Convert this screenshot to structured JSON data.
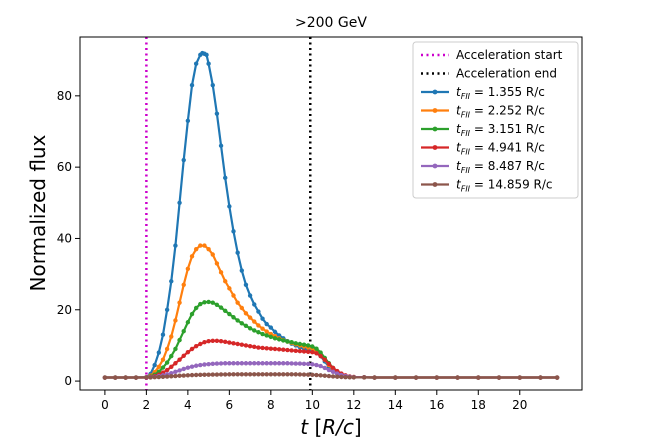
{
  "chart_data": {
    "type": "line",
    "title": ">200 GeV",
    "xlabel": "t [R/c]",
    "ylabel": "Normalized flux",
    "xlim": [
      -1.2,
      23.0
    ],
    "ylim": [
      -2.5,
      96.5
    ],
    "xticks": [
      0,
      2,
      4,
      6,
      8,
      10,
      12,
      14,
      16,
      18,
      20
    ],
    "yticks": [
      0,
      20,
      40,
      60,
      80
    ],
    "legend_position": "top-right",
    "vlines": [
      {
        "name": "Acceleration start",
        "x": 2.0,
        "color": "#cc00cc"
      },
      {
        "name": "Acceleration end",
        "x": 9.9,
        "color": "#000000"
      }
    ],
    "series": [
      {
        "prefix": "t",
        "subscript": "FII",
        "suffix": " = 1.355 R/c",
        "color": "#1f77b4",
        "x": [
          0,
          0.5,
          1,
          1.5,
          2,
          2.2,
          2.4,
          2.6,
          2.8,
          3,
          3.2,
          3.4,
          3.6,
          3.8,
          4,
          4.2,
          4.4,
          4.6,
          4.7,
          4.8,
          4.9,
          5,
          5.2,
          5.4,
          5.6,
          5.8,
          6,
          6.2,
          6.4,
          6.6,
          6.8,
          7,
          7.2,
          7.4,
          7.6,
          7.8,
          8,
          8.2,
          8.4,
          8.6,
          8.8,
          9,
          9.2,
          9.4,
          9.6,
          9.8,
          10,
          10.2,
          10.4,
          10.6,
          10.8,
          11,
          11.2,
          11.4,
          11.6,
          11.8,
          12,
          12.5,
          13,
          14,
          15,
          16,
          17,
          18,
          19,
          20,
          21,
          21.8
        ],
        "y": [
          1,
          1,
          1,
          1,
          1.1,
          2,
          4.5,
          8,
          13,
          20,
          28,
          38,
          50,
          62,
          73,
          83,
          89,
          91.5,
          92,
          91.8,
          91.5,
          89,
          83,
          75,
          66,
          57,
          49,
          42,
          36,
          31,
          27,
          24,
          21.5,
          19.5,
          17.5,
          16,
          15,
          13.8,
          12.8,
          12,
          11.2,
          10.5,
          10,
          9.5,
          9.1,
          8.8,
          8.5,
          8,
          7,
          5.5,
          4,
          2.8,
          2,
          1.6,
          1.3,
          1.15,
          1.1,
          1.05,
          1,
          1,
          1,
          1,
          1,
          1,
          1,
          1,
          1,
          1
        ]
      },
      {
        "prefix": "t",
        "subscript": "FII",
        "suffix": " = 2.252 R/c",
        "color": "#ff7f0e",
        "x": [
          0,
          0.5,
          1,
          1.5,
          2,
          2.2,
          2.4,
          2.6,
          2.8,
          3,
          3.2,
          3.4,
          3.6,
          3.8,
          4,
          4.2,
          4.4,
          4.6,
          4.8,
          5,
          5.2,
          5.4,
          5.6,
          5.8,
          6,
          6.2,
          6.4,
          6.6,
          6.8,
          7,
          7.2,
          7.4,
          7.6,
          7.8,
          8,
          8.2,
          8.4,
          8.6,
          8.8,
          9,
          9.2,
          9.4,
          9.6,
          9.8,
          10,
          10.2,
          10.4,
          10.6,
          10.8,
          11,
          11.2,
          11.4,
          11.6,
          11.8,
          12,
          12.5,
          13,
          14,
          15,
          16,
          17,
          18,
          19,
          20,
          21,
          21.8
        ],
        "y": [
          1,
          1,
          1,
          1,
          1.05,
          1.5,
          2.5,
          4,
          6,
          9,
          12.5,
          17,
          22,
          27,
          31.5,
          35,
          37,
          38,
          38,
          37,
          35.5,
          33,
          30.5,
          28,
          26,
          24,
          22,
          20.5,
          19,
          17.8,
          16.7,
          15.6,
          14.7,
          13.9,
          13.2,
          12.6,
          12,
          11.5,
          11.1,
          10.7,
          10.3,
          10,
          9.7,
          9.4,
          9.1,
          8.5,
          7.5,
          6,
          4.5,
          3.3,
          2.4,
          1.8,
          1.4,
          1.2,
          1.1,
          1.05,
          1,
          1,
          1,
          1,
          1,
          1,
          1,
          1,
          1,
          1
        ]
      },
      {
        "prefix": "t",
        "subscript": "FII",
        "suffix": " = 3.151 R/c",
        "color": "#2ca02c",
        "x": [
          0,
          0.5,
          1,
          1.5,
          2,
          2.2,
          2.4,
          2.6,
          2.8,
          3,
          3.2,
          3.4,
          3.6,
          3.8,
          4,
          4.2,
          4.4,
          4.6,
          4.8,
          5,
          5.2,
          5.4,
          5.6,
          5.8,
          6,
          6.2,
          6.4,
          6.6,
          6.8,
          7,
          7.2,
          7.4,
          7.6,
          7.8,
          8,
          8.2,
          8.4,
          8.6,
          8.8,
          9,
          9.2,
          9.4,
          9.6,
          9.8,
          10,
          10.2,
          10.4,
          10.6,
          10.8,
          11,
          11.2,
          11.4,
          11.6,
          11.8,
          12,
          12.5,
          13,
          14,
          15,
          16,
          17,
          18,
          19,
          20,
          21,
          21.8
        ],
        "y": [
          1,
          1,
          1,
          1,
          1.02,
          1.3,
          1.8,
          2.6,
          3.8,
          5.2,
          7,
          9,
          11.5,
          14,
          16.5,
          18.8,
          20.5,
          21.6,
          22.1,
          22.2,
          22,
          21.4,
          20.6,
          19.7,
          18.8,
          17.9,
          17,
          16.2,
          15.5,
          14.8,
          14.2,
          13.7,
          13.2,
          12.8,
          12.4,
          12,
          11.7,
          11.4,
          11.1,
          10.9,
          10.6,
          10.4,
          10.2,
          10,
          9.7,
          9.1,
          8,
          6.5,
          5,
          3.7,
          2.7,
          2,
          1.5,
          1.25,
          1.1,
          1.05,
          1,
          1,
          1,
          1,
          1,
          1,
          1,
          1,
          1,
          1
        ]
      },
      {
        "prefix": "t",
        "subscript": "FII",
        "suffix": " = 4.941 R/c",
        "color": "#d62728",
        "x": [
          0,
          0.5,
          1,
          1.5,
          2,
          2.2,
          2.4,
          2.6,
          2.8,
          3,
          3.2,
          3.4,
          3.6,
          3.8,
          4,
          4.2,
          4.4,
          4.6,
          4.8,
          5,
          5.2,
          5.4,
          5.6,
          5.8,
          6,
          6.2,
          6.4,
          6.6,
          6.8,
          7,
          7.2,
          7.4,
          7.6,
          7.8,
          8,
          8.2,
          8.4,
          8.6,
          8.8,
          9,
          9.2,
          9.4,
          9.6,
          9.8,
          10,
          10.2,
          10.4,
          10.6,
          10.8,
          11,
          11.2,
          11.4,
          11.6,
          11.8,
          12,
          12.5,
          13,
          14,
          15,
          16,
          17,
          18,
          19,
          20,
          21,
          21.8
        ],
        "y": [
          1,
          1,
          1,
          1,
          1.01,
          1.15,
          1.4,
          1.8,
          2.4,
          3.1,
          4,
          5,
          6,
          7.1,
          8.1,
          9,
          9.8,
          10.4,
          10.9,
          11.2,
          11.3,
          11.3,
          11.2,
          11,
          10.8,
          10.6,
          10.4,
          10.2,
          10,
          9.8,
          9.6,
          9.4,
          9.3,
          9.2,
          9.1,
          9,
          8.9,
          8.8,
          8.7,
          8.6,
          8.5,
          8.4,
          8.3,
          8.2,
          8.1,
          7.8,
          7,
          6,
          4.8,
          3.7,
          2.8,
          2.1,
          1.6,
          1.3,
          1.15,
          1.05,
          1,
          1,
          1,
          1,
          1,
          1,
          1,
          1,
          1,
          1
        ]
      },
      {
        "prefix": "t",
        "subscript": "FII",
        "suffix": " = 8.487 R/c",
        "color": "#9467bd",
        "x": [
          0,
          0.5,
          1,
          1.5,
          2,
          2.2,
          2.4,
          2.6,
          2.8,
          3,
          3.2,
          3.4,
          3.6,
          3.8,
          4,
          4.2,
          4.4,
          4.6,
          4.8,
          5,
          5.2,
          5.4,
          5.6,
          5.8,
          6,
          6.2,
          6.4,
          6.6,
          6.8,
          7,
          7.2,
          7.4,
          7.6,
          7.8,
          8,
          8.2,
          8.4,
          8.6,
          8.8,
          9,
          9.2,
          9.4,
          9.6,
          9.8,
          10,
          10.2,
          10.4,
          10.6,
          10.8,
          11,
          11.2,
          11.4,
          11.6,
          11.8,
          12,
          12.5,
          13,
          14,
          15,
          16,
          17,
          18,
          19,
          20,
          21,
          21.8
        ],
        "y": [
          1,
          1,
          1,
          1,
          1.01,
          1.08,
          1.2,
          1.4,
          1.6,
          1.9,
          2.2,
          2.6,
          3,
          3.4,
          3.75,
          4.05,
          4.3,
          4.5,
          4.65,
          4.75,
          4.85,
          4.9,
          4.95,
          5,
          5,
          5,
          5,
          5,
          5,
          5,
          5,
          5,
          5,
          5,
          5,
          5,
          5,
          5,
          5,
          4.95,
          4.9,
          4.9,
          4.85,
          4.8,
          4.7,
          4.5,
          4.2,
          3.7,
          3.1,
          2.6,
          2.1,
          1.7,
          1.4,
          1.2,
          1.1,
          1.05,
          1,
          1,
          1,
          1,
          1,
          1,
          1,
          1,
          1,
          1
        ]
      },
      {
        "prefix": "t",
        "subscript": "FII",
        "suffix": " = 14.859 R/c",
        "color": "#8c564b",
        "x": [
          0,
          0.5,
          1,
          1.5,
          2,
          2.2,
          2.4,
          2.6,
          2.8,
          3,
          3.2,
          3.4,
          3.6,
          3.8,
          4,
          4.2,
          4.4,
          4.6,
          4.8,
          5,
          5.2,
          5.4,
          5.6,
          5.8,
          6,
          6.2,
          6.4,
          6.6,
          6.8,
          7,
          7.2,
          7.4,
          7.6,
          7.8,
          8,
          8.2,
          8.4,
          8.6,
          8.8,
          9,
          9.2,
          9.4,
          9.6,
          9.8,
          10,
          10.2,
          10.4,
          10.6,
          10.8,
          11,
          11.2,
          11.4,
          11.6,
          11.8,
          12,
          12.5,
          13,
          14,
          15,
          16,
          17,
          18,
          19,
          20,
          21,
          21.8
        ],
        "y": [
          1,
          1,
          1,
          1,
          1,
          1.03,
          1.08,
          1.13,
          1.2,
          1.27,
          1.35,
          1.42,
          1.5,
          1.56,
          1.62,
          1.67,
          1.71,
          1.75,
          1.78,
          1.8,
          1.82,
          1.84,
          1.86,
          1.87,
          1.88,
          1.89,
          1.9,
          1.9,
          1.9,
          1.9,
          1.9,
          1.9,
          1.9,
          1.9,
          1.9,
          1.9,
          1.9,
          1.9,
          1.9,
          1.9,
          1.88,
          1.86,
          1.84,
          1.8,
          1.76,
          1.7,
          1.6,
          1.5,
          1.4,
          1.3,
          1.22,
          1.15,
          1.1,
          1.06,
          1.04,
          1.02,
          1,
          1,
          1,
          1,
          1,
          1,
          1,
          1,
          1,
          1
        ]
      }
    ]
  }
}
